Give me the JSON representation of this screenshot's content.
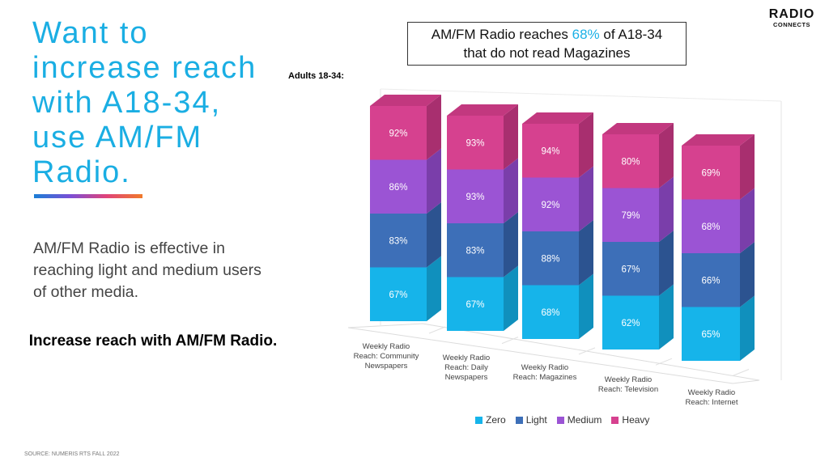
{
  "headline": [
    "Want to",
    "increase reach",
    "with A18-34,",
    "use AM/FM",
    "Radio."
  ],
  "body_text": "AM/FM Radio is effective in reaching light and medium users of other media.",
  "cta": "Increase reach with AM/FM Radio.",
  "source": "SOURCE:  NUMERIS RTS FALL 2022",
  "logo": {
    "main": "RADIO",
    "sub": "CONNECTS"
  },
  "callout": {
    "prefix": "AM/FM Radio reaches ",
    "highlight": "68%",
    "middle": " of  A18-34",
    "line2": "that do not read Magazines",
    "highlight_color": "#1ab0e6"
  },
  "chart_data": {
    "type": "bar",
    "stacked": true,
    "subtitle": "Adults 18-34:",
    "categories": [
      "Weekly Radio Reach: Community Newspapers",
      "Weekly Radio Reach: Daily Newspapers",
      "Weekly Radio Reach: Magazines",
      "Weekly Radio Reach: Television",
      "Weekly Radio Reach: Internet"
    ],
    "category_lines": [
      [
        "Weekly Radio",
        "Reach: Community",
        "Newspapers"
      ],
      [
        "Weekly Radio",
        "Reach: Daily",
        "Newspapers"
      ],
      [
        "Weekly Radio",
        "Reach: Magazines"
      ],
      [
        "Weekly Radio",
        "Reach: Television"
      ],
      [
        "Weekly Radio",
        "Reach: Internet"
      ]
    ],
    "series": [
      {
        "name": "Zero",
        "values": [
          67,
          67,
          68,
          62,
          65
        ],
        "color": "#16b4ea",
        "side": "#1090bd",
        "top": "#4fcaf2"
      },
      {
        "name": "Light",
        "values": [
          83,
          83,
          88,
          67,
          66
        ],
        "color": "#3d6fb8",
        "side": "#2c5390",
        "top": "#6a92cf"
      },
      {
        "name": "Medium",
        "values": [
          86,
          93,
          92,
          79,
          68
        ],
        "color": "#9b54d4",
        "side": "#7a3eaa",
        "top": "#b67fe0"
      },
      {
        "name": "Heavy",
        "values": [
          92,
          93,
          94,
          80,
          69
        ],
        "color": "#d6418f",
        "side": "#a82f6f",
        "top": "#c2387f"
      }
    ],
    "data_label_suffix": "%",
    "legend_position": "bottom",
    "grid": false
  }
}
